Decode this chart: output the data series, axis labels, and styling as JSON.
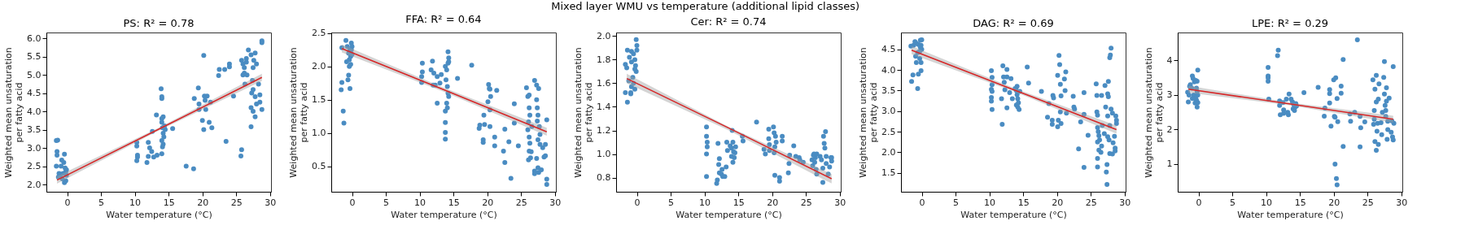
{
  "chart_data": [
    {
      "type": "scatter",
      "title": "PS: R² = 0.78",
      "xlabel": "Water temperature (°C)",
      "ylabel": "Weighted mean unsaturation\nper fatty acid",
      "xlim": [
        -3.07,
        30.15
      ],
      "xticks": [
        0,
        5,
        10,
        15,
        20,
        25,
        30
      ],
      "ylim": [
        1.8,
        6.16
      ],
      "yticks": [
        {
          "value": 2,
          "label": "2.0"
        },
        2.5,
        {
          "value": 3,
          "label": "3.0"
        },
        3.5,
        {
          "value": 4,
          "label": "4.0"
        },
        4.5,
        {
          "value": 5,
          "label": "5.0"
        },
        5.5,
        {
          "value": 6,
          "label": "6.0"
        }
      ],
      "grid": false,
      "series": [
        {
          "marker": "circle",
          "color": "#4a8cc2",
          "x": [
            -1.6,
            -1.4,
            -1.5,
            -1.5,
            -1.6,
            -0.4,
            -0.8,
            -0.9,
            -1.2,
            -1.0,
            -0.5,
            -0.3,
            -0.2,
            -0.1,
            -0.2,
            -0.4,
            -0.7,
            -1.3,
            -0.6,
            -0.1,
            10.3,
            10.3,
            10.4,
            10.4,
            10.3,
            11.8,
            12,
            12.2,
            12.5,
            12.8,
            13.2,
            13.3,
            12.6,
            12.0,
            13.9,
            14,
            14,
            14.2,
            14,
            14,
            14.1,
            14.2,
            14.3,
            14,
            14.2,
            14.1,
            14.4,
            14.5,
            14,
            15.6,
            17.6,
            18.7,
            18.8,
            19.4,
            19.5,
            19.5,
            20.2,
            20,
            20.2,
            20.3,
            20.4,
            20.5,
            20.7,
            21,
            21.4,
            21.2,
            22.4,
            22.5,
            23.3,
            23.5,
            24,
            24,
            24.6,
            25.8,
            26,
            26.2,
            26.5,
            26.2,
            26,
            26.3,
            25.8,
            25.7,
            26.8,
            26.5,
            26.6,
            27.2,
            27.6,
            27.8,
            27.5,
            28,
            27.3,
            27.5,
            27.8,
            28,
            27.2,
            27.5,
            27.8,
            27.2,
            28.3,
            28.5,
            28.8,
            28.8,
            28.8,
            28.5,
            27.4
          ],
          "values": [
            3.2,
            3.21,
            2.9,
            2.8,
            2.5,
            2.83,
            2.67,
            2.5,
            2.3,
            2.2,
            2.6,
            2.45,
            2.35,
            2.25,
            2.1,
            2.05,
            2.15,
            2.2,
            2.3,
            2.4,
            3.15,
            3.05,
            2.8,
            2.75,
            2.65,
            2.6,
            3.15,
            3.0,
            2.9,
            2.75,
            3.9,
            2.8,
            3.45,
            2.77,
            4.62,
            4.4,
            4.35,
            3.85,
            3.8,
            3.7,
            3.55,
            3.4,
            3.3,
            3.2,
            3.1,
            3.03,
            3.6,
            3.5,
            2.84,
            3.53,
            2.5,
            2.43,
            4.35,
            4.64,
            4.2,
            4.05,
            5.53,
            3.75,
            3.5,
            4.42,
            4.3,
            4.05,
            4.42,
            3.7,
            3.55,
            4.25,
            4.98,
            5.15,
            5.15,
            3.18,
            5.3,
            5.22,
            4.42,
            5.4,
            5.3,
            5.2,
            5.45,
            5.05,
            5.0,
            4.75,
            2.95,
            2.78,
            5.68,
            5.35,
            5.0,
            5.55,
            5.4,
            5.6,
            5.2,
            5.3,
            4.5,
            4.6,
            4.4,
            4.2,
            4.1,
            4.0,
            3.85,
            3.58,
            4.75,
            4.45,
            5.93,
            5.88,
            4.05,
            4.25,
            4.85
          ]
        },
        {
          "type": "line",
          "color": "#d62728",
          "x": [
            -1.5,
            13.6,
            28.8
          ],
          "values": [
            2.12,
            3.52,
            4.93
          ],
          "lower": [
            2.02,
            3.48,
            4.83
          ],
          "upper": [
            2.22,
            3.56,
            5.03
          ]
        }
      ]
    },
    {
      "type": "scatter",
      "title": "FFA: R² = 0.64",
      "xlabel": "Water temperature (°C)",
      "ylabel": "Weighted mean unsaturation\nper fatty acid",
      "xlim": [
        -3.07,
        30.15
      ],
      "xticks": [
        0,
        5,
        10,
        15,
        20,
        25,
        30
      ],
      "ylim": [
        0.12,
        2.51
      ],
      "yticks": [
        0.5,
        {
          "value": 1,
          "label": "1.0"
        },
        1.5,
        {
          "value": 2,
          "label": "2.0"
        },
        2.5
      ],
      "grid": false,
      "series": [
        {
          "marker": "circle",
          "color": "#4a8cc2",
          "x": [
            -1.5,
            -1.6,
            -1.3,
            -1.2,
            -1.5,
            -0.9,
            -0.7,
            -0.5,
            -0.3,
            -0.1,
            0,
            -0.2,
            -0.4,
            -0.8,
            -0.4,
            -0.2,
            -0.5,
            -0.6,
            -0.3,
            -0.1,
            0,
            10.4,
            10.4,
            10.3,
            10.3,
            11.9,
            11.7,
            12.1,
            12,
            12.6,
            12.6,
            12.3,
            13,
            13.2,
            13.8,
            14.2,
            14.3,
            14.2,
            14,
            13.9,
            14.1,
            14.2,
            14.3,
            14,
            14.1,
            13.8,
            13.8,
            13.8,
            13.8,
            14.3,
            15.6,
            17.7,
            18.8,
            18.9,
            19.4,
            19.4,
            19.5,
            19.6,
            20.1,
            20.2,
            20.3,
            20.4,
            20.4,
            20.4,
            20.5,
            21.1,
            21.1,
            21.4,
            22.4,
            22.6,
            22.6,
            23.5,
            23.2,
            24,
            24,
            24.6,
            25.8,
            26,
            26.2,
            26.2,
            26.3,
            26.1,
            26,
            26.2,
            26.3,
            26.2,
            26.4,
            26.1,
            26.5,
            26.6,
            27,
            27.3,
            27.6,
            27.3,
            27.4,
            27.5,
            27.4,
            27.5,
            27.8,
            27.8,
            27.7,
            27.3,
            27.5,
            27.6,
            27,
            27,
            28,
            28.2,
            28.4,
            28.6,
            28.8,
            28.8,
            28.8,
            28.6
          ],
          "values": [
            1.76,
            1.65,
            1.33,
            1.15,
            2.28,
            2.39,
            2.3,
            2.2,
            2.25,
            2.35,
            2.3,
            2.15,
            2.1,
            2.07,
            2.0,
            2.03,
            1.87,
            1.8,
            1.67,
            2.25,
            2.18,
            2.05,
            1.92,
            1.85,
            1.76,
            2.08,
            1.95,
            1.9,
            1.72,
            1.85,
            1.45,
            1.72,
            1.75,
            1.88,
            2.0,
            2.22,
            2.13,
            2.05,
            1.95,
            1.8,
            1.7,
            1.6,
            1.55,
            1.45,
            1.38,
            1.33,
            1.16,
            1.01,
            0.91,
            2.07,
            1.82,
            2.02,
            1.07,
            1.12,
            0.9,
            0.86,
            1.27,
            1.13,
            1.47,
            1.73,
            1.67,
            1.66,
            1.35,
            1.1,
            1.55,
            0.94,
            0.81,
            1.64,
            0.73,
            1.06,
            0.56,
            0.32,
            0.87,
            1.44,
            1.15,
            0.81,
            1.68,
            1.55,
            1.57,
            1.38,
            1.27,
            1.17,
            1.05,
            0.94,
            0.85,
            0.73,
            0.63,
            0.6,
            0.72,
            1.1,
            1.79,
            1.72,
            1.67,
            1.5,
            1.38,
            1.27,
            1.18,
            0.9,
            0.83,
            0.98,
            1.1,
            0.62,
            0.48,
            0.41,
            0.43,
            0.39,
            0.45,
            0.78,
            0.64,
            0.83,
            1.2,
            0.31,
            0.23,
            0.66
          ]
        },
        {
          "type": "line",
          "color": "#d62728",
          "x": [
            -1.5,
            13.6,
            28.8
          ],
          "values": [
            2.27,
            1.65,
            1.02
          ],
          "lower": [
            2.21,
            1.62,
            0.96
          ],
          "upper": [
            2.33,
            1.68,
            1.08
          ]
        }
      ]
    },
    {
      "type": "scatter",
      "title": "Cer: R² = 0.74",
      "xlabel": "Water temperature (°C)",
      "ylabel": "Weighted mean unsaturation\nper fatty acid",
      "annotations": [
        "Mixed layer WMU vs temperature (additional lipid classes)"
      ],
      "xlim": [
        -3.07,
        30.15
      ],
      "xticks": [
        0,
        5,
        10,
        15,
        20,
        25,
        30
      ],
      "ylim": [
        0.68,
        2.03
      ],
      "yticks": [
        0.8,
        {
          "value": 1,
          "label": "1.0"
        },
        1.2,
        1.4,
        1.6,
        1.8,
        {
          "value": 2,
          "label": "2.0"
        }
      ],
      "grid": false,
      "series": [
        {
          "marker": "circle",
          "color": "#4a8cc2",
          "x": [
            -1.7,
            -1.4,
            -1.5,
            -1.7,
            -1.4,
            -1.1,
            -0.8,
            -0.8,
            -0.5,
            -0.3,
            -0.1,
            0,
            0,
            -0.2,
            -0.1,
            -0.3,
            -0.6,
            -0.8,
            -0.9,
            -0.9,
            -0.3,
            -1.2,
            -0.5,
            10.3,
            10.3,
            10.4,
            10.4,
            10.3,
            10.3,
            11.8,
            11.9,
            12,
            12.2,
            12.1,
            12.2,
            12.5,
            12.6,
            12.7,
            13,
            13.2,
            13.3,
            13.4,
            13.8,
            14,
            14.1,
            14.2,
            14.3,
            14,
            14.2,
            14.4,
            14.6,
            14.5,
            15.6,
            15.7,
            17.7,
            18.8,
            19,
            19.5,
            19.5,
            19.6,
            19.6,
            20.2,
            20.3,
            20.5,
            20.4,
            20.6,
            20.3,
            20.4,
            21.1,
            21.1,
            21.5,
            21.5,
            22.4,
            22.5,
            22.6,
            23.2,
            23.5,
            24,
            24.1,
            24.6,
            25.9,
            26,
            26.1,
            26.2,
            26.3,
            26.4,
            26.5,
            26.6,
            26.6,
            27.1,
            27.3,
            27.5,
            27.5,
            27.6,
            27.7,
            27.8,
            27.9,
            28,
            28,
            28.3,
            28.5,
            28.7,
            28.8,
            28.8
          ],
          "values": [
            1.52,
            1.44,
            1.73,
            1.76,
            1.88,
            1.82,
            1.87,
            1.78,
            1.85,
            1.8,
            1.97,
            1.92,
            1.88,
            1.75,
            1.7,
            1.72,
            1.65,
            1.57,
            1.51,
            1.52,
            1.55,
            1.62,
            1.6,
            1.23,
            1.15,
            1.1,
            1.06,
            1.0,
            0.81,
            0.75,
            0.78,
            1.09,
            0.96,
            0.91,
            0.84,
            0.83,
            0.87,
            0.81,
            0.81,
            0.89,
            1.1,
            1.03,
            1.07,
            1.05,
            1.2,
            1.1,
            1.02,
            0.98,
            0.93,
            0.97,
            1.06,
            1.01,
            1.15,
            1.11,
            1.27,
            1.04,
            1.0,
            1.21,
            1.13,
            1.08,
            1.03,
            1.23,
            1.18,
            1.15,
            1.06,
            1.1,
            1.01,
            0.82,
            0.8,
            0.77,
            1.15,
            1.11,
            0.84,
            0.92,
            0.99,
            1.07,
            0.98,
            0.97,
            0.95,
            0.93,
            0.95,
            0.9,
            0.99,
            1.0,
            0.93,
            0.97,
            0.87,
            1.0,
            0.83,
            0.98,
            0.95,
            0.76,
            0.88,
            1.15,
            1.09,
            1.05,
            1.19,
            0.98,
            0.92,
            0.83,
            0.89,
            0.97,
            0.94,
            0.97
          ]
        },
        {
          "type": "line",
          "color": "#d62728",
          "x": [
            -1.5,
            13.6,
            28.8
          ],
          "values": [
            1.64,
            1.22,
            0.79
          ],
          "lower": [
            1.6,
            1.2,
            0.75
          ],
          "upper": [
            1.68,
            1.23,
            0.83
          ]
        }
      ]
    },
    {
      "type": "scatter",
      "title": "DAG: R² = 0.69",
      "xlabel": "Water temperature (°C)",
      "ylabel": "Weighted mean unsaturation\nper fatty acid",
      "xlim": [
        -3.07,
        30.15
      ],
      "xticks": [
        0,
        5,
        10,
        15,
        20,
        25,
        30
      ],
      "ylim": [
        1.04,
        4.91
      ],
      "yticks": [
        1.5,
        {
          "value": 2,
          "label": "2.0"
        },
        2.5,
        {
          "value": 3,
          "label": "3.0"
        },
        3.5,
        {
          "value": 4,
          "label": "4.0"
        },
        4.5
      ],
      "grid": false,
      "series": [
        {
          "marker": "circle",
          "color": "#4a8cc2",
          "x": [
            -1.6,
            -1.5,
            -1.3,
            -1.2,
            -1,
            -0.8,
            -0.5,
            -0.2,
            0,
            -0.1,
            -0.3,
            -0.6,
            -0.9,
            -0.8,
            -0.3,
            -0.1,
            -0.1,
            -0.5,
            -0.6,
            0,
            -0.2,
            10.3,
            10.4,
            10.4,
            10.3,
            10.4,
            10.3,
            10.3,
            10.4,
            11.8,
            11.9,
            12,
            12.1,
            12.2,
            12.3,
            12.6,
            12.6,
            12.6,
            13,
            13.2,
            13.4,
            13.8,
            14,
            14.1,
            14.2,
            14.3,
            14,
            14.2,
            14.4,
            14.5,
            14.1,
            15.6,
            15.8,
            17.7,
            18.6,
            18.8,
            19.3,
            19.3,
            19.4,
            19.5,
            20.1,
            20.2,
            20.1,
            20.3,
            20.4,
            20.5,
            20.5,
            20.6,
            20.6,
            21.1,
            21.3,
            21.2,
            21.4,
            22.4,
            22.5,
            22.6,
            23.2,
            23.5,
            24,
            24,
            24,
            24.6,
            25.8,
            25.9,
            25.9,
            26,
            26,
            26.1,
            26.2,
            26,
            26.2,
            26,
            26,
            26.3,
            26.5,
            26.6,
            26.7,
            26.6,
            27,
            27.1,
            27.2,
            27.3,
            27.4,
            27.4,
            27.5,
            27.5,
            27.5,
            27.6,
            27.6,
            27.7,
            27.8,
            27.8,
            27.8,
            27.9,
            28,
            28,
            28.2,
            28.2,
            28.3,
            28.5,
            28.6,
            28.7,
            28.8,
            28.8,
            28.6
          ],
          "values": [
            4.58,
            3.72,
            3.88,
            4.6,
            4.69,
            4.65,
            4.62,
            4.72,
            4.73,
            4.6,
            4.45,
            4.42,
            4.33,
            4.18,
            4.28,
            4.18,
            3.98,
            3.9,
            3.55,
            4.5,
            4.55,
            3.98,
            3.82,
            3.64,
            3.53,
            3.48,
            3.33,
            3.24,
            3.04,
            3.3,
            2.68,
            4.1,
            3.83,
            3.7,
            3.52,
            4.01,
            3.83,
            3.08,
            3.45,
            3.79,
            3.3,
            3.55,
            3.5,
            3.4,
            3.3,
            3.2,
            3.15,
            3.1,
            3.04,
            3.48,
            3.6,
            4.07,
            3.68,
            3.48,
            2.85,
            3.18,
            2.78,
            2.68,
            3.38,
            3.32,
            2.62,
            2.78,
            3.87,
            4.35,
            4.13,
            3.65,
            2.98,
            2.7,
            3.37,
            3.78,
            3.95,
            3.5,
            2.95,
            3.36,
            3.1,
            3.05,
            2.08,
            2.74,
            3.45,
            2.92,
            1.63,
            2.41,
            3.66,
            3.38,
            2.98,
            2.9,
            2.6,
            2.5,
            2.4,
            2.25,
            2.05,
            1.85,
            1.64,
            2.3,
            2.0,
            2.15,
            2.65,
            3.38,
            2.45,
            3.62,
            3.1,
            1.52,
            1.22,
            1.7,
            2.38,
            2.88,
            3.42,
            3.35,
            3.72,
            2.3,
            2.65,
            1.97,
            4.3,
            4.36,
            4.53,
            3.05,
            2.95,
            1.96,
            2.23,
            2.39,
            2.03,
            2.88,
            2.78,
            2.7,
            2.1
          ]
        },
        {
          "type": "line",
          "color": "#d62728",
          "x": [
            -1.5,
            13.6,
            28.8
          ],
          "values": [
            4.48,
            3.52,
            2.55
          ],
          "lower": [
            4.38,
            3.48,
            2.45
          ],
          "upper": [
            4.58,
            3.56,
            2.65
          ]
        }
      ]
    },
    {
      "type": "scatter",
      "title": "LPE: R² = 0.29",
      "xlabel": "Water temperature (°C)",
      "ylabel": "Weighted mean unsaturation\nper fatty acid",
      "xlim": [
        -3.07,
        30.15
      ],
      "xticks": [
        0,
        5,
        10,
        15,
        20,
        25,
        30
      ],
      "ylim": [
        0.2,
        4.81
      ],
      "yticks": [
        1,
        2,
        3,
        4
      ],
      "grid": false,
      "series": [
        {
          "marker": "circle",
          "color": "#4a8cc2",
          "x": [
            -1.5,
            -1.6,
            -1.4,
            -1.3,
            -1.2,
            -1.0,
            -0.9,
            -0.8,
            -0.6,
            -0.4,
            -0.2,
            -0.1,
            -0.3,
            -0.2,
            -0.1,
            -0.4,
            -0.5,
            -0.3,
            -0.1,
            -0.2,
            -0.7,
            -0.9,
            10.3,
            10.3,
            10.3,
            10.3,
            10.4,
            11.7,
            11.8,
            12,
            12,
            12.1,
            12.5,
            12.6,
            12.6,
            13,
            13.2,
            13.3,
            13.4,
            13.7,
            13.9,
            14.1,
            14.3,
            14.0,
            14.2,
            14.4,
            14.5,
            15.6,
            17.7,
            18.6,
            18.7,
            19.4,
            19.4,
            19.4,
            19.6,
            20.0,
            20.1,
            20.2,
            20.3,
            20.2,
            20.4,
            20.5,
            20.5,
            20.6,
            21.1,
            21.1,
            21.4,
            21.4,
            22.5,
            22.4,
            23.1,
            23.5,
            23.9,
            24,
            23.9,
            24.6,
            25.8,
            25.9,
            26,
            26,
            26.1,
            26.1,
            26.3,
            26.3,
            26.3,
            26.4,
            26.5,
            26.6,
            26.6,
            26.7,
            27,
            27.1,
            27.2,
            27.4,
            27.5,
            27.5,
            27.6,
            27.7,
            27.7,
            27.8,
            27.8,
            27.9,
            28,
            28.0,
            28.2,
            28.5,
            28.6,
            28.7,
            28.8,
            28.8,
            28.9
          ],
          "values": [
            2.8,
            3.08,
            3.0,
            3.25,
            3.3,
            3.2,
            3.55,
            3.48,
            3.38,
            3.42,
            3.4,
            3.72,
            3.2,
            3.1,
            3.0,
            2.9,
            2.77,
            2.85,
            2.78,
            2.65,
            3.0,
            2.9,
            3.8,
            3.55,
            3.5,
            3.4,
            2.88,
            4.14,
            4.3,
            2.83,
            2.7,
            2.43,
            2.78,
            2.57,
            2.47,
            2.88,
            2.5,
            2.43,
            3.03,
            2.88,
            2.8,
            2.72,
            2.65,
            2.6,
            2.55,
            2.75,
            2.68,
            3.07,
            3.22,
            2.39,
            2.62,
            3.16,
            3.04,
            2.77,
            2.1,
            3.44,
            2.38,
            2.36,
            3.5,
            1.0,
            0.58,
            0.4,
            2.9,
            2.23,
            3.26,
            3.05,
            4.03,
            1.51,
            2.24,
            2.45,
            2.5,
            4.6,
            2.38,
            2.05,
            1.5,
            2.22,
            3.44,
            2.15,
            2.55,
            2.3,
            1.65,
            3.17,
            2.8,
            3.57,
            1.4,
            1.95,
            2.18,
            2.88,
            1.57,
            3.32,
            2.2,
            1.85,
            2.5,
            3.51,
            3.97,
            3.03,
            2.7,
            2.55,
            2.38,
            3.21,
            2.82,
            1.72,
            2.0,
            2.24,
            2.91,
            1.92,
            2.25,
            1.79,
            1.7,
            3.82,
            2.18
          ]
        },
        {
          "type": "line",
          "color": "#d62728",
          "x": [
            -1.5,
            13.6,
            28.8
          ],
          "values": [
            3.17,
            2.74,
            2.3
          ],
          "lower": [
            3.07,
            2.7,
            2.2
          ],
          "upper": [
            3.27,
            2.78,
            2.4
          ]
        }
      ]
    }
  ]
}
